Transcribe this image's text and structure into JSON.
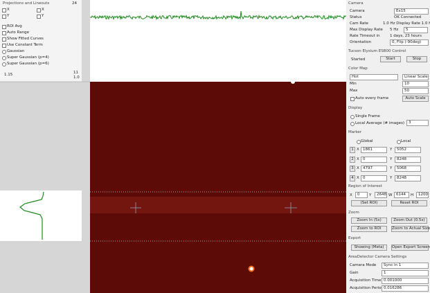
{
  "projections": {
    "title": "Projections and Lineouts",
    "count": "24",
    "x1": "X",
    "y1": "Y",
    "x2": "X",
    "y2": "Y",
    "roi_avg": "ROI Avg",
    "auto_range": "Auto Range",
    "show_fitted": "Show Fitted Curves",
    "constant_term": "Use Constant Term",
    "gaussian": "Gaussian",
    "super4": "Super Gaussian (p=4)",
    "super6": "Super Gaussian (p=6)",
    "left_value": "1.15",
    "right_top": "11",
    "right_bottom": "1.0"
  },
  "camera": {
    "title": "Camera",
    "camera_label": "Camera",
    "camera_value": "Ex15",
    "status_label": "Status",
    "status_value": "OK Connected",
    "rate_label": "Cam Rate",
    "rate_value": "1.0 Hz  Display Rate 1.0 Hz",
    "max_label": "Max Display Rate",
    "max_value": "5 Hz",
    "max_input": "5",
    "timeout_label": "Rate Timeout in",
    "timeout_value": "1 days, 23 hours",
    "orient_label": "Orientation",
    "orient_value": "0, Flip (-90deg)"
  },
  "control": {
    "title": "Tucson Elysium ESB00 Control",
    "state": "Started",
    "start": "Start",
    "stop": "Stop"
  },
  "color_map": {
    "title": "Color Map",
    "map": "Hot",
    "scale": "Linear Scale",
    "min_label": "Min",
    "min_value": "10",
    "max_label": "Max",
    "max_value": "50",
    "auto": "Auto every frame",
    "auto_scale": "Auto Scale"
  },
  "display": {
    "title": "Display",
    "single": "Single Frame",
    "average": "Local Average (# images)",
    "average_value": "3"
  },
  "marker": {
    "title": "Marker",
    "global": "Global",
    "local": "Local",
    "rows": [
      [
        "1",
        "X",
        "1861",
        "Y",
        "5052"
      ],
      [
        "2",
        "X",
        "0",
        "Y",
        "8248"
      ],
      [
        "3",
        "X",
        "4797",
        "Y",
        "5068"
      ],
      [
        "4",
        "X",
        "0",
        "Y",
        "8248"
      ]
    ]
  },
  "roi": {
    "title": "Region of Interest",
    "x_label": "X",
    "x": "0",
    "y_label": "Y",
    "y": "2648",
    "w_label": "W",
    "w": "6144",
    "h_label": "H",
    "h": "1200",
    "set": "(Set ROI)",
    "reset": "Reset ROI"
  },
  "zoom": {
    "title": "Zoom",
    "in": "Zoom In (5x)",
    "out": "Zoom Out (0.5x)",
    "roi": "Zoom to ROI",
    "actual": "Zoom to Actual Size"
  },
  "export": {
    "title": "Export",
    "showing": "Showing (Meta)",
    "open": "Open Export Screen"
  },
  "area_detector": {
    "title": "AreaDetector Camera Settings",
    "mode_label": "Camera Mode",
    "mode_value": "Sync in 1",
    "gain_label": "Gain",
    "gain_value": "1",
    "time_label": "Acquisition Time (s)",
    "time_value": "0.001000",
    "period_label": "Acquisition Period (s)",
    "period_value": "0.016286"
  }
}
